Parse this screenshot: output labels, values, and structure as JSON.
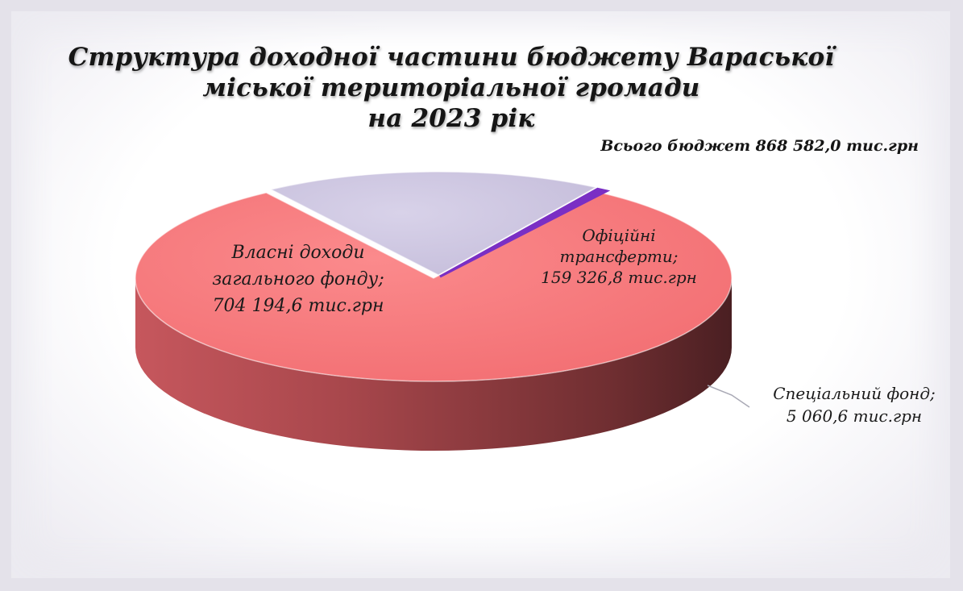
{
  "title_lines": [
    "Структура доходної частини бюджету Вараської",
    "міської територіальної громади",
    "на 2023 рік"
  ],
  "total_label": "Всього бюджет 868 582,0 тис.грн",
  "chart_data": {
    "type": "pie",
    "title": "Структура доходної частини бюджету Вараської міської територіальної громади на 2023 рік",
    "unit": "тис.грн",
    "total": 868582.0,
    "slices": [
      {
        "name": "Власні доходи загального фонду",
        "value": 704194.6,
        "label_lines": [
          "Власні доходи",
          "загального фонду;",
          "704 194,6 тис.грн"
        ],
        "color": "#f87b7e",
        "side_color": "#b05055"
      },
      {
        "name": "Офіційні трансферти",
        "value": 159326.8,
        "label_lines": [
          "Офіційні",
          "трансферти;",
          "159 326,8 тис.грн"
        ],
        "color": "#ccc5e0",
        "side_color": "#9d95b4"
      },
      {
        "name": "Спеціальний фонд",
        "value": 5060.6,
        "label_lines": [
          "Спеціальний фонд;",
          "5 060,6 тис.грн"
        ],
        "color": "#7a2fc4",
        "side_color": "#3a1570"
      }
    ],
    "legend": "none"
  }
}
